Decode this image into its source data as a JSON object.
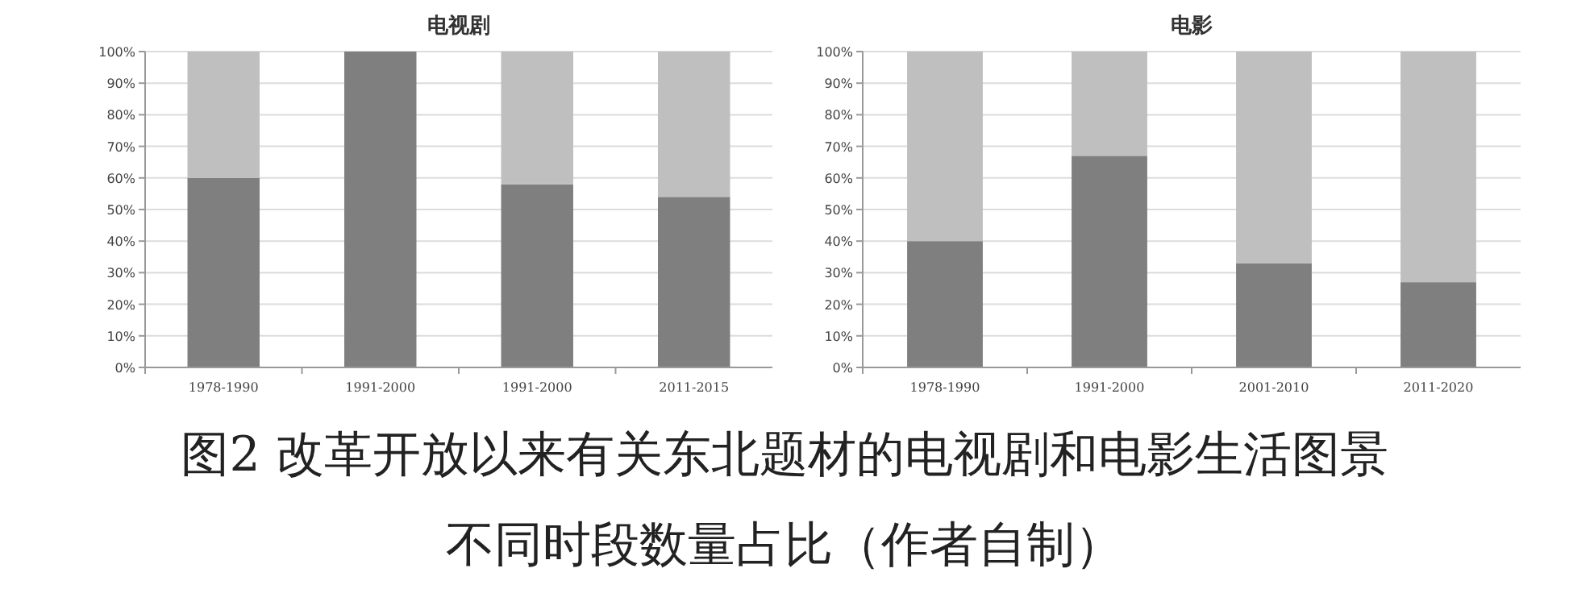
{
  "chart_data": [
    {
      "type": "bar",
      "title": "电视剧",
      "stacked": true,
      "grid": "y",
      "categories": [
        "1978-1990",
        "1991-2000",
        "1991-2000",
        "2011-2015"
      ],
      "series": [
        {
          "color": "#7f7f7f",
          "values": [
            60,
            100,
            58,
            54
          ]
        },
        {
          "color": "#bfbfbf",
          "values": [
            40,
            0,
            42,
            46
          ]
        }
      ],
      "ylim": [
        0,
        100
      ],
      "yticks": [
        {
          "value": 0,
          "label": "0%"
        },
        {
          "value": 10,
          "label": "10%"
        },
        {
          "value": 20,
          "label": "20%"
        },
        {
          "value": 30,
          "label": "30%"
        },
        {
          "value": 40,
          "label": "40%"
        },
        {
          "value": 50,
          "label": "50%"
        },
        {
          "value": 60,
          "label": "60%"
        },
        {
          "value": 70,
          "label": "70%"
        },
        {
          "value": 80,
          "label": "80%"
        },
        {
          "value": 90,
          "label": "90%"
        },
        {
          "value": 100,
          "label": "100%"
        }
      ],
      "annotations": [
        "图2 改革开放以来有关东北题材的电视剧和电影生活图景",
        "不同时段数量占比（作者自制）"
      ]
    },
    {
      "type": "bar",
      "title": "电影",
      "stacked": true,
      "grid": "y",
      "categories": [
        "1978-1990",
        "1991-2000",
        "2001-2010",
        "2011-2020"
      ],
      "series": [
        {
          "color": "#7f7f7f",
          "values": [
            40,
            67,
            33,
            27
          ]
        },
        {
          "color": "#bfbfbf",
          "values": [
            60,
            33,
            67,
            73
          ]
        }
      ],
      "ylim": [
        0,
        100
      ],
      "yticks": [
        {
          "value": 0,
          "label": "0%"
        },
        {
          "value": 10,
          "label": "10%"
        },
        {
          "value": 20,
          "label": "20%"
        },
        {
          "value": 30,
          "label": "30%"
        },
        {
          "value": 40,
          "label": "40%"
        },
        {
          "value": 50,
          "label": "50%"
        },
        {
          "value": 60,
          "label": "60%"
        },
        {
          "value": 70,
          "label": "70%"
        },
        {
          "value": 80,
          "label": "80%"
        },
        {
          "value": 90,
          "label": "90%"
        },
        {
          "value": 100,
          "label": "100%"
        }
      ]
    }
  ]
}
